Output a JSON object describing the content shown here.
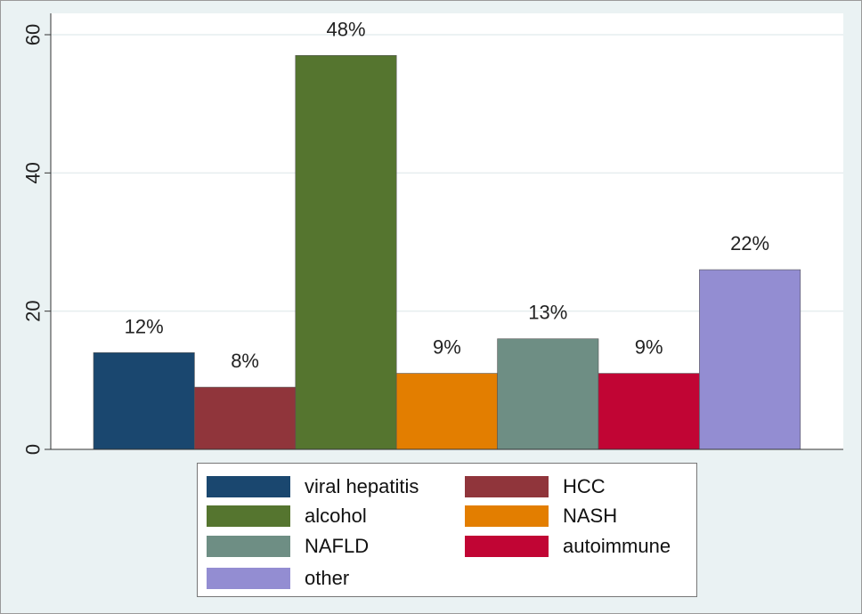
{
  "chart_data": {
    "type": "bar",
    "categories": [
      "viral hepatitis",
      "HCC",
      "alcohol",
      "NASH",
      "NAFLD",
      "autoimmune",
      "other"
    ],
    "values": [
      14,
      9,
      57,
      11,
      16,
      11,
      26
    ],
    "data_labels": [
      "12%",
      "8%",
      "48%",
      "9%",
      "13%",
      "9%",
      "22%"
    ],
    "colors": [
      "#1a476f",
      "#90353b",
      "#55752f",
      "#e37e00",
      "#6e8e84",
      "#c10534",
      "#938dd2"
    ],
    "ylim": [
      0,
      60
    ],
    "yticks": [
      0,
      20,
      40,
      60
    ],
    "title": "",
    "xlabel": "",
    "ylabel": "",
    "grid": true,
    "legend": {
      "placement": "bottom",
      "entries": [
        "viral hepatitis",
        "HCC",
        "alcohol",
        "NASH",
        "NAFLD",
        "autoimmune",
        "other"
      ]
    }
  }
}
